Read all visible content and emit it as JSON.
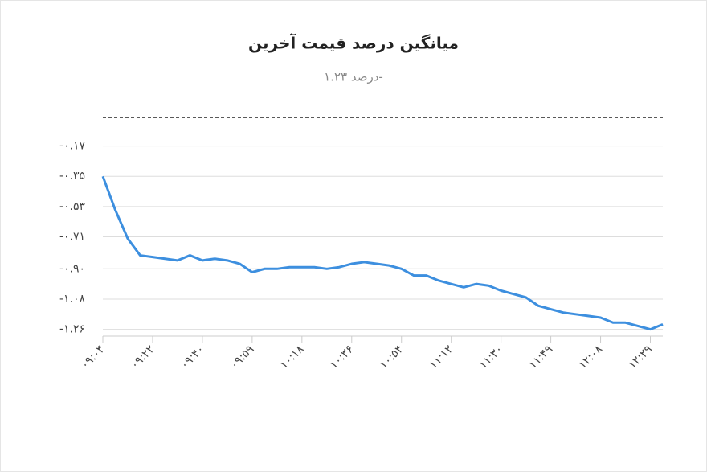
{
  "chart_data": {
    "type": "line",
    "title": "میانگین درصد قیمت آخرین",
    "subtitle": "درصد ۱.۲۳-",
    "categories": [
      "۰۹:۰۴",
      null,
      null,
      null,
      "۰۹:۲۲",
      null,
      null,
      null,
      "۰۹:۴۰",
      null,
      null,
      null,
      "۰۹:۵۹",
      null,
      null,
      null,
      "۱۰:۱۸",
      null,
      null,
      null,
      "۱۰:۳۶",
      null,
      null,
      null,
      "۱۰:۵۴",
      null,
      null,
      null,
      "۱۱:۱۲",
      null,
      null,
      null,
      "۱۱:۳۰",
      null,
      null,
      null,
      "۱۱:۴۹",
      null,
      null,
      null,
      "۱۲:۰۸",
      null,
      null,
      null,
      "۱۲:۲۹",
      null
    ],
    "series": [
      {
        "name": "میانگین درصد قیمت آخرین",
        "color": "#3d8fdf",
        "values": [
          -0.35,
          -0.55,
          -0.72,
          -0.82,
          -0.83,
          -0.84,
          -0.85,
          -0.82,
          -0.85,
          -0.84,
          -0.85,
          -0.87,
          -0.92,
          -0.9,
          -0.9,
          -0.89,
          -0.89,
          -0.89,
          -0.9,
          -0.89,
          -0.87,
          -0.86,
          -0.87,
          -0.88,
          -0.9,
          -0.94,
          -0.94,
          -0.97,
          -0.99,
          -1.01,
          -0.99,
          -1.0,
          -1.03,
          -1.05,
          -1.07,
          -1.12,
          -1.14,
          -1.16,
          -1.17,
          -1.18,
          -1.19,
          -1.22,
          -1.22,
          -1.24,
          -1.26,
          -1.23
        ]
      }
    ],
    "ylim": [
      -1.3,
      0
    ],
    "yticks": [
      {
        "value": -0.17,
        "label": "-۰.۱۷"
      },
      {
        "value": -0.35,
        "label": "-۰.۳۵"
      },
      {
        "value": -0.53,
        "label": "-۰.۵۳"
      },
      {
        "value": -0.71,
        "label": "-۰.۷۱"
      },
      {
        "value": -0.9,
        "label": "-۰.۹۰"
      },
      {
        "value": -1.08,
        "label": "-۱.۰۸"
      },
      {
        "value": -1.26,
        "label": "-۱.۲۶"
      }
    ],
    "grid": true
  }
}
